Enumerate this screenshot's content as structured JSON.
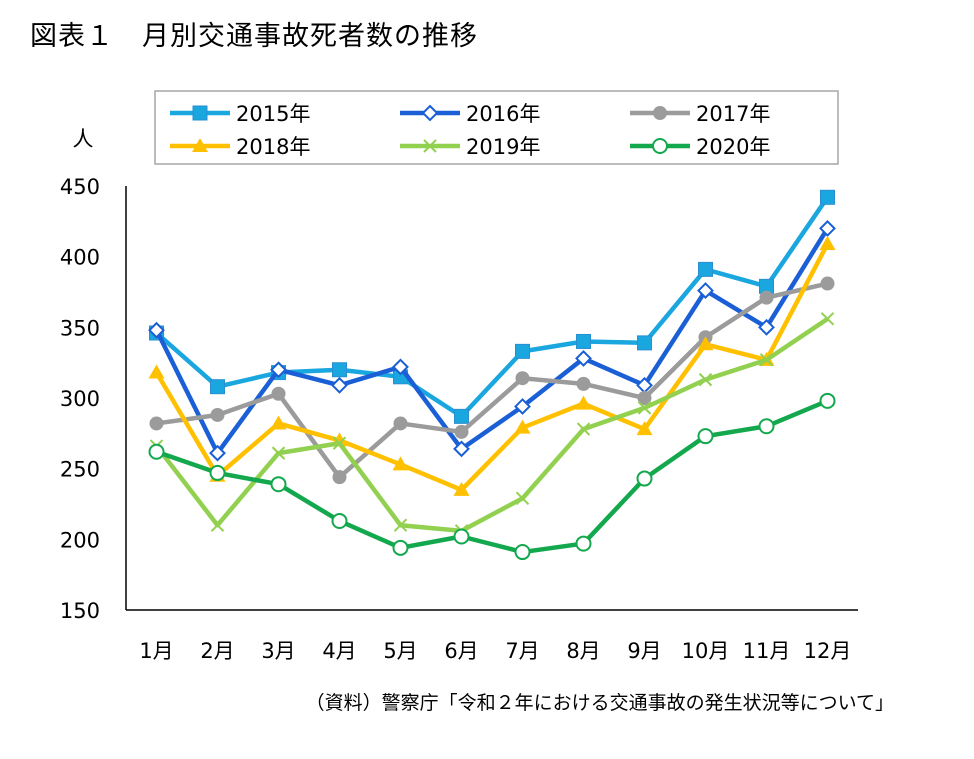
{
  "title": "図表１　月別交通事故死者数の推移",
  "source": "（資料）警察庁「令和２年における交通事故の発生状況等について」",
  "chart_data": {
    "type": "line",
    "ylabel": "人",
    "ylim": [
      150,
      450
    ],
    "yticks": [
      150,
      200,
      250,
      300,
      350,
      400,
      450
    ],
    "categories": [
      "1月",
      "2月",
      "3月",
      "4月",
      "5月",
      "6月",
      "7月",
      "8月",
      "9月",
      "10月",
      "11月",
      "12月"
    ],
    "legend_position": "top",
    "grid": false,
    "series": [
      {
        "name": "2015年",
        "color": "#1aa6df",
        "marker": "square-filled",
        "values": [
          346,
          308,
          318,
          320,
          315,
          287,
          333,
          340,
          339,
          391,
          379,
          442
        ]
      },
      {
        "name": "2016年",
        "color": "#1a5fd6",
        "marker": "diamond-open",
        "values": [
          348,
          261,
          320,
          309,
          322,
          264,
          294,
          328,
          309,
          376,
          350,
          420
        ]
      },
      {
        "name": "2017年",
        "color": "#9b9b9b",
        "marker": "circle-filled",
        "values": [
          282,
          288,
          303,
          244,
          282,
          276,
          314,
          310,
          300,
          343,
          371,
          381
        ]
      },
      {
        "name": "2018年",
        "color": "#ffc000",
        "marker": "triangle-filled",
        "values": [
          318,
          245,
          282,
          270,
          253,
          235,
          279,
          296,
          278,
          338,
          327,
          409
        ]
      },
      {
        "name": "2019年",
        "color": "#92d050",
        "marker": "x",
        "values": [
          266,
          210,
          261,
          268,
          210,
          206,
          229,
          278,
          293,
          313,
          327,
          356
        ]
      },
      {
        "name": "2020年",
        "color": "#14a84e",
        "marker": "circle-open",
        "values": [
          262,
          247,
          239,
          213,
          194,
          202,
          191,
          197,
          243,
          273,
          280,
          298
        ]
      }
    ]
  }
}
